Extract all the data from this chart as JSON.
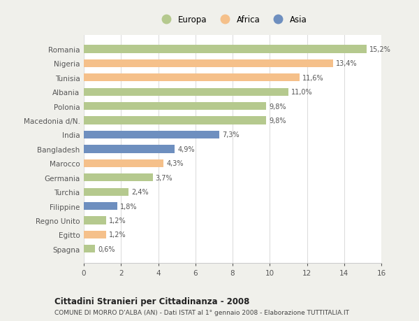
{
  "categories": [
    "Romania",
    "Nigeria",
    "Tunisia",
    "Albania",
    "Polonia",
    "Macedonia d/N.",
    "India",
    "Bangladesh",
    "Marocco",
    "Germania",
    "Turchia",
    "Filippine",
    "Regno Unito",
    "Egitto",
    "Spagna"
  ],
  "values": [
    15.2,
    13.4,
    11.6,
    11.0,
    9.8,
    9.8,
    7.3,
    4.9,
    4.3,
    3.7,
    2.4,
    1.8,
    1.2,
    1.2,
    0.6
  ],
  "labels": [
    "15,2%",
    "13,4%",
    "11,6%",
    "11,0%",
    "9,8%",
    "9,8%",
    "7,3%",
    "4,9%",
    "4,3%",
    "3,7%",
    "2,4%",
    "1,8%",
    "1,2%",
    "1,2%",
    "0,6%"
  ],
  "continents": [
    "Europa",
    "Africa",
    "Africa",
    "Europa",
    "Europa",
    "Europa",
    "Asia",
    "Asia",
    "Africa",
    "Europa",
    "Europa",
    "Asia",
    "Europa",
    "Africa",
    "Europa"
  ],
  "colors": {
    "Europa": "#b5c98e",
    "Africa": "#f5c08a",
    "Asia": "#6e8fbf"
  },
  "xlim": [
    0,
    16
  ],
  "xticks": [
    0,
    2,
    4,
    6,
    8,
    10,
    12,
    14,
    16
  ],
  "title": "Cittadini Stranieri per Cittadinanza - 2008",
  "subtitle": "COMUNE DI MORRO D'ALBA (AN) - Dati ISTAT al 1° gennaio 2008 - Elaborazione TUTTITALIA.IT",
  "bg_color": "#f0f0eb",
  "plot_bg_color": "#ffffff"
}
